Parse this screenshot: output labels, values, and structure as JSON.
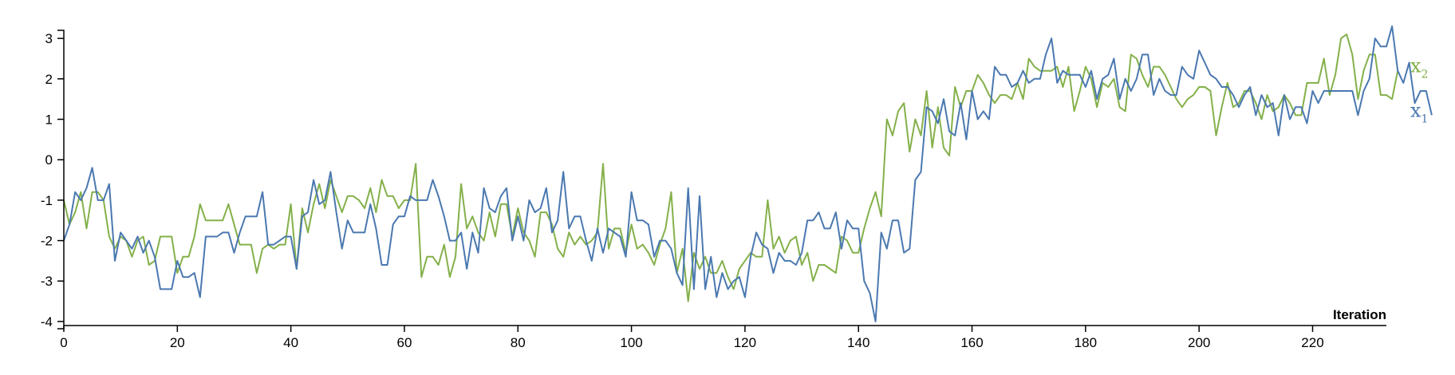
{
  "chart_data": {
    "type": "line",
    "title": "",
    "xlabel": "Iteration",
    "ylabel": "",
    "xlim": [
      0,
      233
    ],
    "ylim": [
      -4.1,
      3.2
    ],
    "xticks": [
      0,
      20,
      40,
      60,
      80,
      100,
      120,
      140,
      160,
      180,
      200,
      220
    ],
    "yticks": [
      -4,
      -3,
      -2,
      -1,
      0,
      1,
      2,
      3
    ],
    "legend_position": "right",
    "grid": false,
    "series": [
      {
        "name": "x2",
        "label_main": "x",
        "label_sub": "2",
        "color": "#84b04a",
        "values": [
          -1.0,
          -1.6,
          -1.3,
          -0.8,
          -1.7,
          -0.8,
          -0.8,
          -1.0,
          -1.9,
          -2.2,
          -1.9,
          -2.0,
          -2.4,
          -2.0,
          -1.9,
          -2.6,
          -2.5,
          -1.9,
          -1.9,
          -1.9,
          -2.8,
          -2.4,
          -2.4,
          -1.9,
          -1.1,
          -1.5,
          -1.5,
          -1.5,
          -1.5,
          -1.1,
          -1.6,
          -2.1,
          -2.1,
          -2.1,
          -2.8,
          -2.2,
          -2.1,
          -2.2,
          -2.1,
          -2.1,
          -1.1,
          -2.7,
          -1.2,
          -1.8,
          -1.1,
          -0.6,
          -1.2,
          -0.5,
          -0.9,
          -1.3,
          -0.9,
          -0.9,
          -1.0,
          -1.2,
          -0.7,
          -1.3,
          -0.5,
          -0.9,
          -0.9,
          -1.2,
          -1.0,
          -1.0,
          -0.1,
          -2.9,
          -2.4,
          -2.4,
          -2.6,
          -2.1,
          -2.9,
          -2.4,
          -0.6,
          -1.7,
          -1.4,
          -1.8,
          -2.0,
          -1.3,
          -1.9,
          -1.1,
          -1.1,
          -1.9,
          -1.2,
          -1.8,
          -2.0,
          -2.4,
          -1.3,
          -1.3,
          -1.6,
          -2.2,
          -2.4,
          -1.8,
          -2.1,
          -1.9,
          -2.1,
          -2.0,
          -1.8,
          -0.1,
          -2.2,
          -1.7,
          -1.7,
          -2.3,
          -1.6,
          -2.2,
          -2.1,
          -2.3,
          -2.6,
          -2.1,
          -1.7,
          -0.8,
          -2.8,
          -2.2,
          -3.5,
          -2.3,
          -2.7,
          -2.4,
          -2.8,
          -2.8,
          -2.5,
          -2.9,
          -3.2,
          -2.7,
          -2.5,
          -2.3,
          -2.4,
          -2.4,
          -1.0,
          -2.2,
          -1.9,
          -2.3,
          -2.0,
          -1.9,
          -2.6,
          -2.3,
          -3.0,
          -2.6,
          -2.6,
          -2.7,
          -2.8,
          -1.9,
          -2.0,
          -2.3,
          -2.3,
          -1.7,
          -1.2,
          -0.8,
          -1.4,
          1.0,
          0.6,
          1.2,
          1.4,
          0.2,
          1.0,
          0.6,
          1.7,
          0.3,
          1.3,
          0.3,
          0.1,
          1.8,
          1.3,
          1.7,
          1.7,
          2.1,
          1.9,
          1.6,
          1.4,
          1.6,
          1.6,
          1.5,
          1.9,
          1.5,
          2.5,
          2.3,
          2.2,
          2.2,
          2.2,
          2.3,
          1.8,
          2.3,
          1.2,
          1.7,
          2.3,
          2.0,
          1.3,
          1.9,
          1.8,
          2.0,
          1.3,
          1.2,
          2.6,
          2.5,
          2.1,
          1.8,
          2.3,
          2.3,
          2.1,
          1.8,
          1.5,
          1.3,
          1.5,
          1.6,
          1.8,
          1.8,
          1.7,
          0.6,
          1.3,
          1.9,
          1.3,
          1.4,
          1.7,
          1.7,
          1.4,
          1.0,
          1.6,
          1.2,
          1.3,
          1.6,
          1.4,
          1.1,
          1.1,
          1.9,
          1.9,
          1.9,
          2.5,
          1.6,
          2.1,
          3.0,
          3.1,
          2.6,
          1.5,
          2.2,
          2.6,
          2.6,
          1.6,
          1.6,
          1.5,
          2.2
        ]
      },
      {
        "name": "x1",
        "label_main": "x",
        "label_sub": "1",
        "color": "#4a78b0",
        "values": [
          -2.0,
          -1.6,
          -0.8,
          -1.0,
          -0.7,
          -0.2,
          -1.0,
          -1.0,
          -0.6,
          -2.5,
          -1.8,
          -2.0,
          -2.2,
          -1.9,
          -2.3,
          -2.0,
          -2.4,
          -3.2,
          -3.2,
          -3.2,
          -2.5,
          -2.9,
          -2.9,
          -2.8,
          -3.4,
          -1.9,
          -1.9,
          -1.9,
          -1.8,
          -1.8,
          -2.3,
          -1.8,
          -1.4,
          -1.4,
          -1.4,
          -0.8,
          -2.1,
          -2.1,
          -2.0,
          -1.9,
          -1.9,
          -2.7,
          -1.4,
          -1.3,
          -0.5,
          -1.1,
          -1.0,
          -0.3,
          -1.3,
          -2.2,
          -1.5,
          -1.8,
          -1.8,
          -1.8,
          -1.1,
          -1.7,
          -2.6,
          -2.6,
          -1.6,
          -1.4,
          -1.4,
          -0.9,
          -1.0,
          -1.0,
          -1.0,
          -0.5,
          -0.9,
          -1.4,
          -2.0,
          -2.0,
          -1.8,
          -2.7,
          -1.8,
          -2.3,
          -0.7,
          -1.2,
          -1.3,
          -0.9,
          -0.7,
          -2.0,
          -1.4,
          -2.0,
          -1.0,
          -1.3,
          -1.2,
          -0.7,
          -1.8,
          -1.5,
          -0.3,
          -1.7,
          -1.4,
          -1.4,
          -2.0,
          -2.5,
          -1.7,
          -2.3,
          -1.7,
          -1.8,
          -1.9,
          -2.4,
          -0.8,
          -1.5,
          -1.5,
          -1.6,
          -2.4,
          -2.0,
          -2.0,
          -2.2,
          -2.8,
          -3.1,
          -0.7,
          -3.2,
          -0.9,
          -3.2,
          -2.4,
          -3.4,
          -2.8,
          -3.2,
          -3.0,
          -2.9,
          -3.4,
          -2.4,
          -1.8,
          -2.1,
          -2.2,
          -2.8,
          -2.3,
          -2.5,
          -2.5,
          -2.6,
          -2.3,
          -1.5,
          -1.5,
          -1.3,
          -1.7,
          -1.7,
          -1.3,
          -2.2,
          -1.5,
          -1.7,
          -1.7,
          -3.0,
          -3.3,
          -4.0,
          -1.8,
          -2.2,
          -1.5,
          -1.5,
          -2.3,
          -2.2,
          -0.5,
          -0.3,
          1.3,
          1.2,
          0.9,
          1.5,
          0.7,
          0.6,
          1.4,
          0.5,
          1.7,
          1.0,
          1.2,
          1.0,
          2.3,
          2.1,
          2.1,
          1.8,
          1.9,
          2.2,
          1.9,
          2.0,
          2.0,
          2.6,
          3.0,
          1.9,
          2.2,
          2.1,
          2.1,
          2.1,
          1.8,
          2.2,
          1.5,
          2.0,
          2.1,
          2.5,
          1.5,
          2.0,
          1.7,
          2.0,
          2.6,
          2.6,
          1.6,
          2.0,
          1.7,
          1.6,
          1.6,
          2.3,
          2.1,
          2.0,
          2.7,
          2.4,
          2.1,
          2.0,
          1.8,
          1.8,
          1.6,
          1.3,
          1.6,
          1.8,
          1.1,
          1.6,
          1.3,
          1.4,
          0.6,
          1.6,
          1.0,
          1.3,
          1.3,
          0.9,
          1.7,
          1.4,
          1.7,
          1.7,
          1.7,
          1.7,
          1.7,
          1.7,
          1.1,
          1.7,
          2.0,
          3.0,
          2.8,
          2.8,
          3.3,
          2.2,
          1.9,
          2.4,
          1.4,
          1.7,
          1.7,
          1.1
        ]
      }
    ]
  }
}
